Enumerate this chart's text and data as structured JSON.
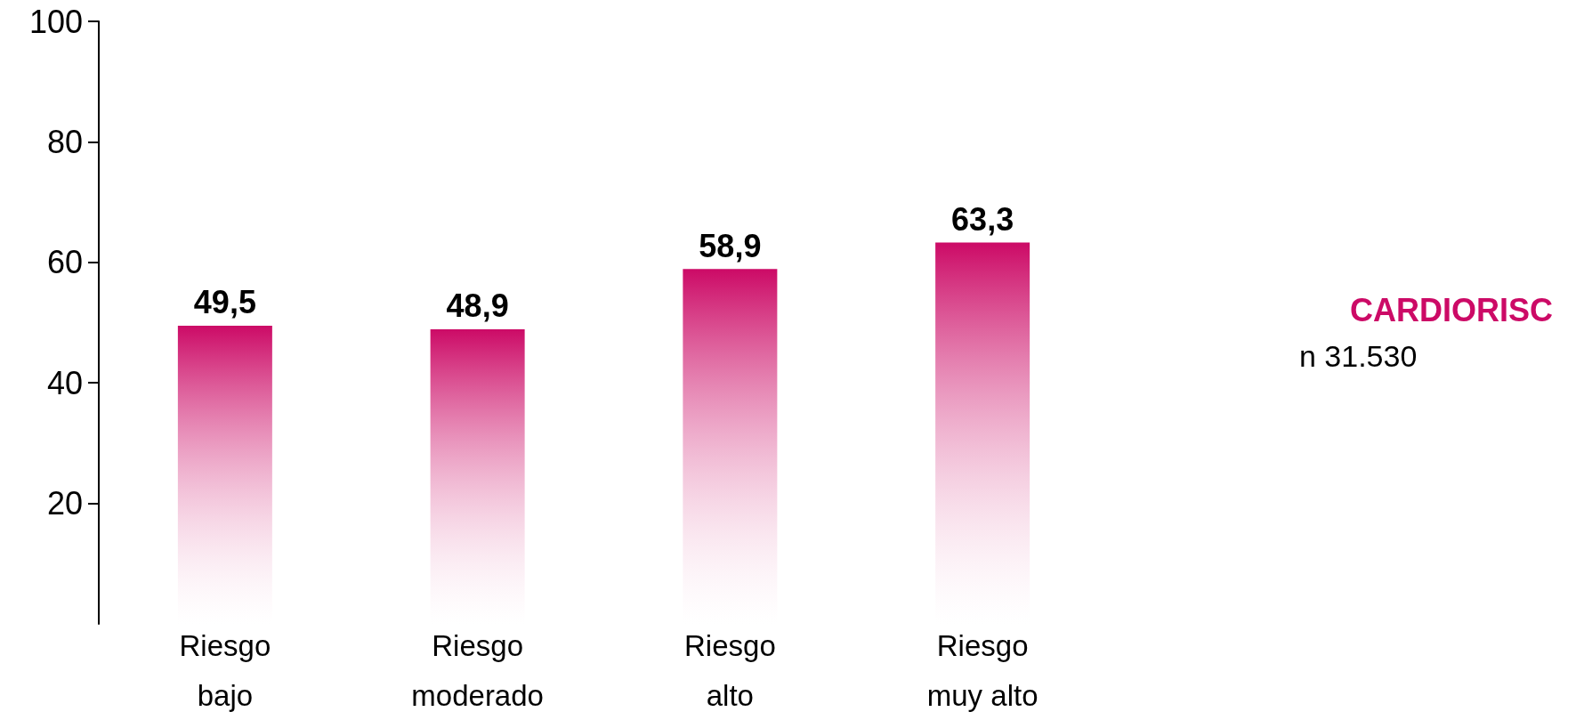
{
  "chart_data": {
    "type": "bar",
    "categories": [
      "Riesgo bajo",
      "Riesgo moderado",
      "Riesgo alto",
      "Riesgo muy alto"
    ],
    "series": [
      {
        "name": "CARDIORISC",
        "color": "#cc0a66",
        "values": [
          49.5,
          48.9,
          58.9,
          63.3
        ]
      }
    ],
    "value_labels": [
      "49,5",
      "48,9",
      "58,9",
      "63,3"
    ],
    "ylim": [
      0,
      100
    ],
    "yticks": [
      20,
      40,
      60,
      80,
      100
    ],
    "grid": false,
    "legend": "right",
    "annotations": [
      "n 31.530"
    ]
  }
}
